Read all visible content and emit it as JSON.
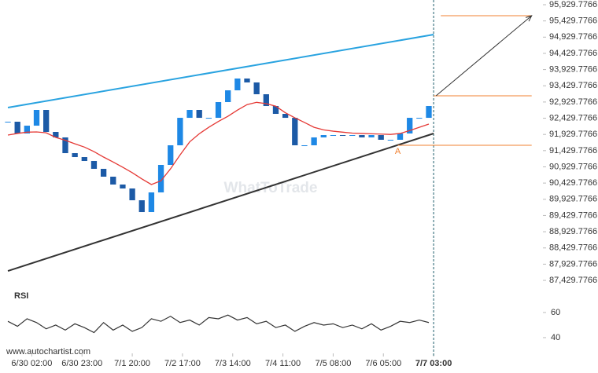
{
  "chart_data": [
    {
      "type": "candlestick",
      "x": [
        0,
        4,
        8,
        12,
        16,
        20,
        24,
        28,
        32,
        36,
        40,
        44,
        48,
        52,
        56,
        60,
        64,
        68,
        72,
        76,
        80,
        84,
        88,
        92,
        96,
        100,
        104,
        108,
        112,
        116,
        120,
        124,
        128,
        132,
        136,
        140,
        144,
        148,
        152,
        156,
        160,
        164,
        168,
        172,
        176
      ],
      "values": [
        92322,
        91959,
        92200,
        92685,
        92007,
        91838,
        91353,
        91232,
        91111,
        90869,
        90627,
        90385,
        90263,
        89900,
        89537,
        90142,
        90990,
        91595,
        92442,
        92685,
        92442,
        92442,
        92927,
        93290,
        93654,
        93533,
        93169,
        92806,
        92564,
        92442,
        91595,
        91595,
        91838,
        91910,
        91910,
        91886,
        91910,
        91838,
        91910,
        91765,
        91765,
        91959,
        92442,
        92442,
        92806
      ],
      "color": "#1e88e5",
      "ma_values": [
        91910,
        91960,
        92000,
        92007,
        91980,
        91838,
        91750,
        91640,
        91540,
        91400,
        91232,
        91080,
        90920,
        90750,
        90560,
        90385,
        90500,
        90870,
        91300,
        91700,
        91950,
        92150,
        92330,
        92490,
        92680,
        92850,
        92920,
        92880,
        92800,
        92600,
        92442,
        92300,
        92150,
        92070,
        92030,
        92000,
        91970,
        91960,
        91950,
        91940,
        91930,
        91960,
        92050,
        92150,
        92250
      ],
      "ma_color": "#e53935",
      "trend_lines": [
        {
          "color": "#29a3e0",
          "x": [
            0,
            178
          ],
          "values": [
            92758,
            95009
          ]
        },
        {
          "color": "#333333",
          "x": [
            0,
            178
          ],
          "values": [
            87721,
            91959
          ]
        }
      ],
      "levels": [
        {
          "color": "#f08030",
          "x": [
            181,
            219
          ],
          "value": 95591
        },
        {
          "color": "#f08030",
          "x": [
            178,
            219
          ],
          "value": 93121
        },
        {
          "color": "#f08030",
          "x": [
            163,
            219
          ],
          "value": 91595
        }
      ],
      "arrow": {
        "x": [
          179,
          219
        ],
        "values": [
          93121,
          95591
        ]
      },
      "annotation": {
        "text": "A",
        "x": 163,
        "value": 91400
      },
      "watermark": "WhatToTrade",
      "xlim": [
        -3.3,
        223.7
      ],
      "ylim": [
        87116,
        96075
      ],
      "yticks": [
        {
          "value": 95929.7766,
          "label": "95,929.7766"
        },
        {
          "value": 95429.7766,
          "label": "95,429.7766"
        },
        {
          "value": 94929.7766,
          "label": "94,929.7766"
        },
        {
          "value": 94429.7766,
          "label": "94,429.7766"
        },
        {
          "value": 93929.7766,
          "label": "93,929.7766"
        },
        {
          "value": 93429.7766,
          "label": "93,429.7766"
        },
        {
          "value": 92929.7766,
          "label": "92,929.7766"
        },
        {
          "value": 92429.7766,
          "label": "92,429.7766"
        },
        {
          "value": 91929.7766,
          "label": "91,929.7766"
        },
        {
          "value": 91429.7766,
          "label": "91,429.7766"
        },
        {
          "value": 90929.7766,
          "label": "90,929.7766"
        },
        {
          "value": 90429.7766,
          "label": "90,429.7766"
        },
        {
          "value": 89929.7766,
          "label": "89,929.7766"
        },
        {
          "value": 89429.7766,
          "label": "89,429.7766"
        },
        {
          "value": 88929.7766,
          "label": "88,929.7766"
        },
        {
          "value": 88429.7766,
          "label": "88,429.7766"
        },
        {
          "value": 87929.7766,
          "label": "87,929.7766"
        },
        {
          "value": 87429.7766,
          "label": "87,429.7766"
        }
      ],
      "xticks": [
        {
          "value": 10,
          "label": "6/30 02:00"
        },
        {
          "value": 31,
          "label": "6/30 23:00"
        },
        {
          "value": 52,
          "label": "7/1 20:00"
        },
        {
          "value": 73,
          "label": "7/2 17:00"
        },
        {
          "value": 94,
          "label": "7/3 14:00"
        },
        {
          "value": 115,
          "label": "7/4 11:00"
        },
        {
          "value": 136,
          "label": "7/5 08:00"
        },
        {
          "value": 157,
          "label": "7/6 05:00"
        },
        {
          "value": 178,
          "label": "7/7 03:00"
        }
      ],
      "marker_x": 178,
      "marker_color": "#1f5f6b"
    },
    {
      "type": "line",
      "title": "RSI",
      "x": [
        0,
        4,
        8,
        12,
        16,
        20,
        24,
        28,
        32,
        36,
        40,
        44,
        48,
        52,
        56,
        60,
        64,
        68,
        72,
        76,
        80,
        84,
        88,
        92,
        96,
        100,
        104,
        108,
        112,
        116,
        120,
        124,
        128,
        132,
        136,
        140,
        144,
        148,
        152,
        156,
        160,
        164,
        168,
        172,
        176
      ],
      "values": [
        53,
        49,
        55,
        52,
        47,
        50,
        46,
        51,
        48,
        44,
        52,
        46,
        50,
        45,
        48,
        55,
        53,
        57,
        52,
        54,
        50,
        56,
        55,
        58,
        54,
        56,
        51,
        53,
        48,
        50,
        45,
        49,
        52,
        50,
        51,
        48,
        50,
        47,
        51,
        46,
        49,
        53,
        52,
        54,
        52
      ],
      "color": "#333333",
      "xlim": [
        -3.3,
        223.7
      ],
      "ylim": [
        30.6,
        68.1
      ],
      "yticks": [
        60,
        40
      ]
    }
  ],
  "footer": "www.autochartist.com"
}
